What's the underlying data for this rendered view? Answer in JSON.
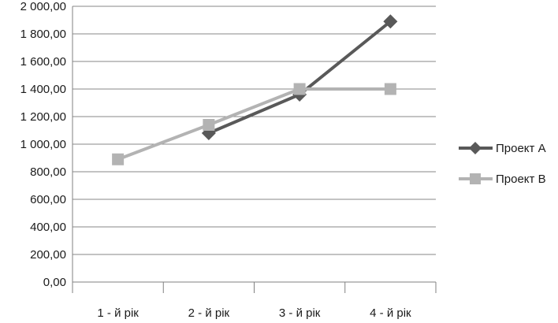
{
  "chart_data": {
    "type": "line",
    "title": "",
    "xlabel": "",
    "ylabel": "",
    "categories": [
      "1 - й рік",
      "2 - й рік",
      "3 - й рік",
      "4 - й рік"
    ],
    "series": [
      {
        "name": "Проект А",
        "marker": "diamond",
        "color": "#595959",
        "values": [
          null,
          1080,
          1360,
          1890
        ]
      },
      {
        "name": "Проект В",
        "marker": "square",
        "color": "#b3b3b3",
        "values": [
          890,
          1140,
          1400,
          1400
        ]
      }
    ],
    "y_axis": {
      "min": 0,
      "max": 2000,
      "step": 200,
      "tick_labels": [
        "0,00",
        "200,00",
        "400,00",
        "600,00",
        "800,00",
        "1 000,00",
        "1 200,00",
        "1 400,00",
        "1 600,00",
        "1 800,00",
        "2 000,00"
      ]
    },
    "x_axis": {
      "tick_labels": [
        "1 - й рік",
        "2 - й рік",
        "3 - й рік",
        "4 - й рік"
      ]
    },
    "grid": true,
    "legend_position": "right",
    "colors": {
      "gridline": "#878787",
      "axis": "#808080",
      "text": "#1a1a1a",
      "background": "#ffffff"
    }
  }
}
